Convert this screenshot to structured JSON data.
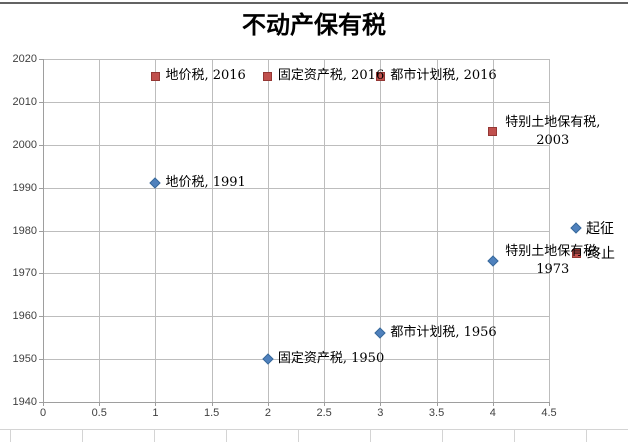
{
  "window": {
    "background": "#FFFFFF",
    "top_border_color": "#636363",
    "worksheet_gridline_color": "#D4D4D4"
  },
  "chart_data": {
    "type": "scatter",
    "title": "不动产保有税",
    "grid": true,
    "legend_position": "right",
    "x_axis": {
      "min": 0,
      "max": 4.5,
      "step": 0.5,
      "tick_labels": [
        "0",
        "0.5",
        "1",
        "1.5",
        "2",
        "2.5",
        "3",
        "3.5",
        "4",
        "4.5"
      ]
    },
    "y_axis": {
      "min": 1940,
      "max": 2020,
      "step": 10,
      "tick_labels": [
        "1940",
        "1950",
        "1960",
        "1970",
        "1980",
        "1990",
        "2000",
        "2010",
        "2020"
      ]
    },
    "legend": [
      {
        "name": "起征",
        "marker": "diamond",
        "color": "#4F81BD",
        "border_color": "#3A6A9B"
      },
      {
        "name": "终止",
        "marker": "square",
        "color": "#C0504D",
        "border_color": "#943734"
      }
    ],
    "series": [
      {
        "name": "起征",
        "marker": "diamond",
        "color": "#4F81BD",
        "border_color": "#3A6A9B",
        "points": [
          {
            "x": 1,
            "y": 1991,
            "label_lines": [
              "地价税, 1991"
            ]
          },
          {
            "x": 2,
            "y": 1950,
            "label_lines": [
              "固定资产税, 1950"
            ]
          },
          {
            "x": 3,
            "y": 1956,
            "label_lines": [
              "都市计划税, 1956"
            ]
          },
          {
            "x": 4,
            "y": 1973,
            "label_lines": [
              "特别土地保有税,",
              "1973"
            ]
          }
        ]
      },
      {
        "name": "终止",
        "marker": "square",
        "color": "#C0504D",
        "border_color": "#943734",
        "points": [
          {
            "x": 1,
            "y": 2016,
            "label_lines": [
              "地价税, 2016"
            ]
          },
          {
            "x": 2,
            "y": 2016,
            "label_lines": [
              "固定资产税, 2016"
            ]
          },
          {
            "x": 3,
            "y": 2016,
            "label_lines": [
              "都市计划税, 2016"
            ]
          },
          {
            "x": 4,
            "y": 2003,
            "label_lines": [
              "特别土地保有税,",
              "2003"
            ]
          }
        ]
      }
    ]
  }
}
